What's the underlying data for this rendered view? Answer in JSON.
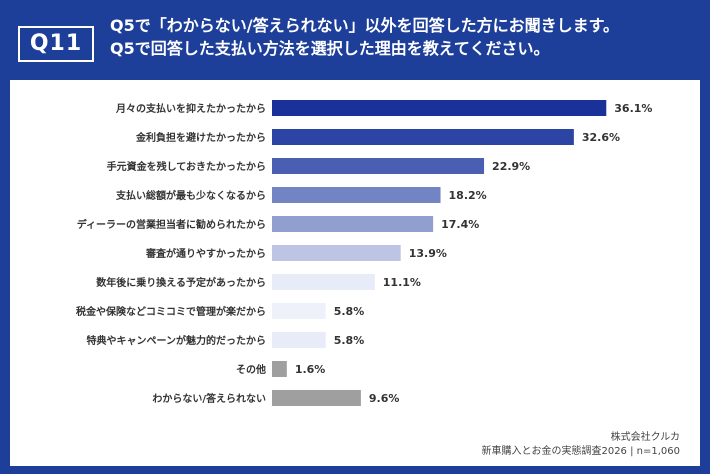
{
  "header": {
    "badge": "Q11",
    "line1": "Q5で「わからない/答えられない」以外を回答した方にお聞きします。",
    "line2": "Q5で回答した支払い方法を選択した理由を教えてください。"
  },
  "chart_data": {
    "type": "bar",
    "orientation": "horizontal",
    "categories": [
      "月々の支払いを抑えたかったから",
      "金利負担を避けたかったから",
      "手元資金を残しておきたかったから",
      "支払い総額が最も少なくなるから",
      "ディーラーの営業担当者に勧められたから",
      "審査が通りやすかったから",
      "数年後に乗り換える予定があったから",
      "税金や保険などコミコミで管理が楽だから",
      "特典やキャンペーンが魅力的だったから",
      "その他",
      "わからない/答えられない"
    ],
    "values": [
      36.1,
      32.6,
      22.9,
      18.2,
      17.4,
      13.9,
      11.1,
      5.8,
      5.8,
      1.6,
      9.6
    ],
    "value_labels": [
      "36.1%",
      "32.6%",
      "22.9%",
      "18.2%",
      "17.4%",
      "13.9%",
      "11.1%",
      "5.8%",
      "5.8%",
      "1.6%",
      "9.6%"
    ],
    "colors": [
      "#1a3199",
      "#2c45a4",
      "#4a5fb2",
      "#7284c4",
      "#919ed0",
      "#bcc5e4",
      "#e7ecf8",
      "#eef1fa",
      "#e7ecf8",
      "#9f9f9f",
      "#9f9f9f"
    ],
    "unit": "%",
    "grid": false
  },
  "footer": {
    "source": "株式会社クルカ",
    "survey": "新車購入とお金の実態調査2026 | n=1,060"
  }
}
